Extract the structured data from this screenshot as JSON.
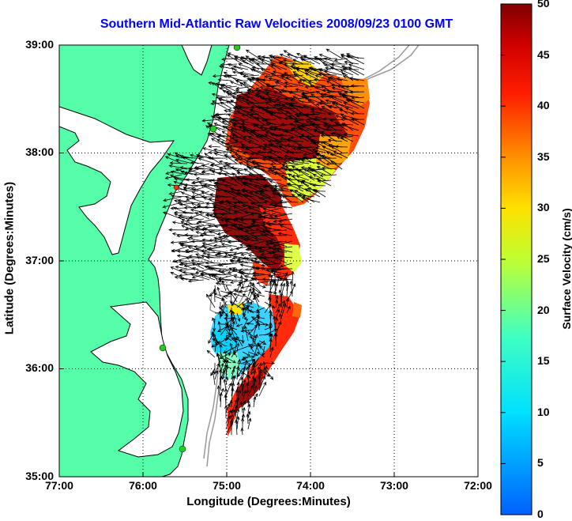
{
  "title": "Southern Mid-Atlantic Raw Velocities 2008/09/23 0100 GMT",
  "xlabel": "Longitude (Degrees:Minutes)",
  "ylabel": "Latitude (Degrees:Minutes)",
  "colorbar_label": "Surface Velocity (cm/s)",
  "x_ticks": [
    "77:00",
    "76:00",
    "75:00",
    "74:00",
    "73:00",
    "72:00"
  ],
  "y_ticks": [
    "39:00",
    "38:00",
    "37:00",
    "36:00",
    "35:00"
  ],
  "colorbar_ticks": [
    "50",
    "45",
    "40",
    "35",
    "30",
    "25",
    "20",
    "15",
    "10",
    "5",
    "0"
  ],
  "colors": {
    "land": "#55ffaa",
    "water": "#ffffff",
    "title": "#0000ff",
    "station": "#22cc22",
    "bathymetry": "#999999"
  },
  "map_extent": {
    "lon": [
      -77,
      -72
    ],
    "lat": [
      35,
      39
    ]
  },
  "colorbar_range": [
    0,
    50
  ]
}
